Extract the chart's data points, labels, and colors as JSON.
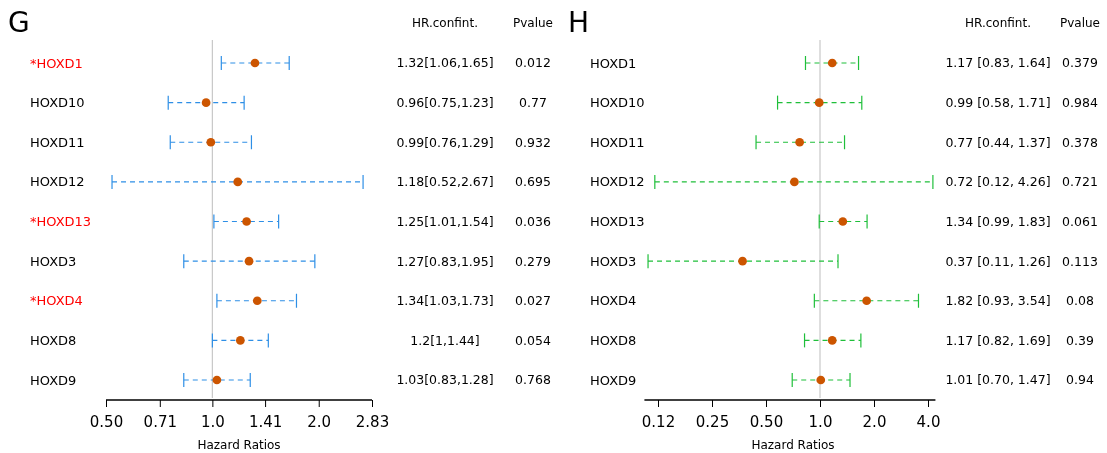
{
  "chart_data": [
    {
      "type": "scatter",
      "title": "G",
      "xlabel": "Hazard Ratios",
      "orientation": "horizontal",
      "log": "x",
      "marker": "circle",
      "categories": [
        "*HOXD1",
        "HOXD10",
        "HOXD11",
        "HOXD12",
        "*HOXD13",
        "HOXD3",
        "*HOXD4",
        "HOXD8",
        "HOXD9"
      ],
      "series": [
        {
          "color": "#cc5500",
          "values": [
            1.32,
            0.96,
            0.99,
            1.18,
            1.25,
            1.27,
            1.34,
            1.2,
            1.03
          ],
          "errors": [
            [
              1.06,
              1.65
            ],
            [
              0.75,
              1.23
            ],
            [
              0.76,
              1.29
            ],
            [
              0.52,
              2.67
            ],
            [
              1.01,
              1.54
            ],
            [
              0.83,
              1.95
            ],
            [
              1.03,
              1.73
            ],
            [
              1,
              1.44
            ],
            [
              0.83,
              1.28
            ]
          ]
        }
      ],
      "xlim": [
        0.5,
        2.83
      ],
      "xticks": [
        {
          "value": 0.5,
          "label": "0.50"
        },
        0.71,
        {
          "value": 1,
          "label": "1.0"
        },
        1.41,
        {
          "value": 2,
          "label": "2.0"
        },
        2.83
      ],
      "ref_lines": [
        {
          "axis": "x",
          "value": 1,
          "color": "#c8c8c8"
        }
      ],
      "annotations": [
        "HR.confint.",
        "Pvalue",
        "1.32[1.06,1.65]",
        "0.96[0.75,1.23]",
        "0.99[0.76,1.29]",
        "1.18[0.52,2.67]",
        "1.25[1.01,1.54]",
        "1.27[0.83,1.95]",
        "1.34[1.03,1.73]",
        "1.2[1,1.44]",
        "1.03[0.83,1.28]",
        "0.012",
        "0.77",
        "0.932",
        "0.695",
        "0.036",
        "0.279",
        "0.027",
        "0.054",
        "0.768"
      ]
    },
    {
      "type": "scatter",
      "title": "H",
      "xlabel": "Hazard Ratios",
      "orientation": "horizontal",
      "log": "x",
      "marker": "circle",
      "categories": [
        "HOXD1",
        "HOXD10",
        "HOXD11",
        "HOXD12",
        "HOXD13",
        "HOXD3",
        "HOXD4",
        "HOXD8",
        "HOXD9"
      ],
      "series": [
        {
          "color": "#cc5500",
          "values": [
            1.17,
            0.99,
            0.77,
            0.72,
            1.34,
            0.37,
            1.82,
            1.17,
            1.01
          ],
          "errors": [
            [
              0.83,
              1.64
            ],
            [
              0.58,
              1.71
            ],
            [
              0.44,
              1.37
            ],
            [
              0.12,
              4.26
            ],
            [
              0.99,
              1.83
            ],
            [
              0.11,
              1.26
            ],
            [
              0.93,
              3.54
            ],
            [
              0.82,
              1.69
            ],
            [
              0.7,
              1.47
            ]
          ]
        }
      ],
      "xlim": [
        0.105,
        4.4
      ],
      "xticks": [
        {
          "value": 0.125,
          "label": "0.12"
        },
        0.25,
        {
          "value": 0.5,
          "label": "0.50"
        },
        {
          "value": 1,
          "label": "1.0"
        },
        {
          "value": 2,
          "label": "2.0"
        },
        {
          "value": 4,
          "label": "4.0"
        }
      ],
      "ref_lines": [
        {
          "axis": "x",
          "value": 1,
          "color": "#c8c8c8"
        }
      ],
      "annotations": [
        "HR.confint.",
        "Pvalue",
        "1.17 [0.83, 1.64]",
        "0.99 [0.58, 1.71]",
        "0.77 [0.44, 1.37]",
        "0.72 [0.12, 4.26]",
        "1.34 [0.99, 1.83]",
        "0.37 [0.11, 1.26]",
        "1.82 [0.93, 3.54]",
        "1.17 [0.82, 1.69]",
        "1.01 [0.70, 1.47]",
        "0.379",
        "0.984",
        "0.378",
        "0.721",
        "0.061",
        "0.113",
        "0.08",
        "0.39",
        "0.94"
      ]
    }
  ]
}
